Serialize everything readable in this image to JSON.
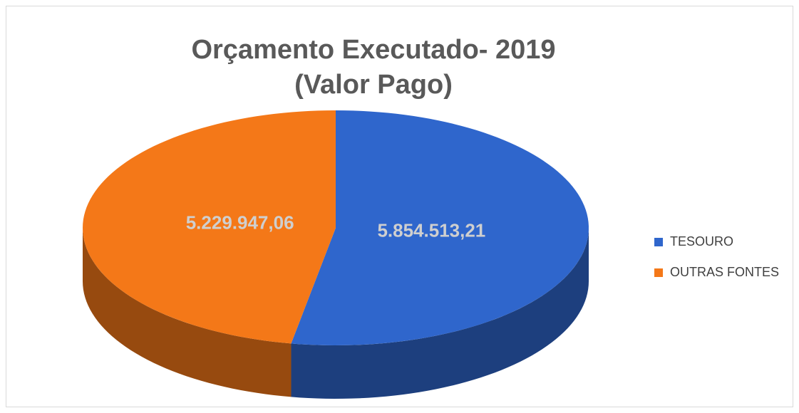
{
  "chart_data": {
    "type": "pie",
    "title": [
      "Orçamento Executado- 2019",
      "(Valor Pago)"
    ],
    "categories": [
      "TESOURO",
      "OUTRAS FONTES"
    ],
    "values": [
      5854513.21,
      5229947.06
    ],
    "value_labels": [
      "5.854.513,21",
      "5.229.947,06"
    ],
    "colors": [
      "#2f66cc",
      "#f47818"
    ],
    "legend": "right"
  }
}
